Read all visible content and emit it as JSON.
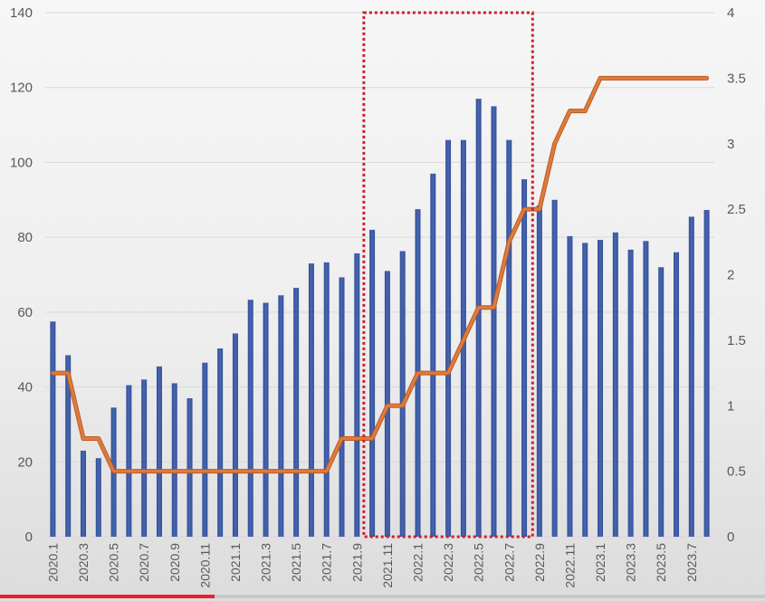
{
  "chart_data": {
    "type": "bar",
    "title": "",
    "xlabel": "",
    "ylabel": "",
    "ylim": [
      0,
      140
    ],
    "y2lim": [
      0,
      4
    ],
    "yticks": [
      "0",
      "20",
      "40",
      "60",
      "80",
      "100",
      "120",
      "140"
    ],
    "y2ticks": [
      "0",
      "0.5",
      "1",
      "1.5",
      "2",
      "2.5",
      "3",
      "3.5",
      "4"
    ],
    "grid": true,
    "x": [
      "2020.1",
      "2020.2",
      "2020.3",
      "2020.4",
      "2020.5",
      "2020.6",
      "2020.7",
      "2020.8",
      "2020.9",
      "2020.10",
      "2020.11",
      "2020.12",
      "2021.1",
      "2021.2",
      "2021.3",
      "2021.4",
      "2021.5",
      "2021.6",
      "2021.7",
      "2021.8",
      "2021.9",
      "2021.10",
      "2021.11",
      "2021.12",
      "2022.1",
      "2022.2",
      "2022.3",
      "2022.4",
      "2022.5",
      "2022.6",
      "2022.7",
      "2022.8",
      "2022.9",
      "2022.10",
      "2022.11",
      "2022.12",
      "2023.1",
      "2023.2",
      "2023.3",
      "2023.4",
      "2023.5",
      "2023.6",
      "2023.7",
      "2023.8"
    ],
    "xtick_labels": [
      "2020.1",
      "2020.3",
      "2020.5",
      "2020.7",
      "2020.9",
      "2020.11",
      "2021.1",
      "2021.3",
      "2021.5",
      "2021.7",
      "2021.9",
      "2021.11",
      "2022.1",
      "2022.3",
      "2022.5",
      "2022.7",
      "2022.9",
      "2022.11",
      "2023.1",
      "2023.3",
      "2023.5",
      "2023.7"
    ],
    "series": [
      {
        "type": "bar",
        "axis": "left",
        "color": "#4a66b0",
        "values": [
          57.5,
          48.5,
          23,
          21,
          34.5,
          40.5,
          42,
          45.5,
          41,
          37,
          46.5,
          50.3,
          54.3,
          63.3,
          62.5,
          64.5,
          66.5,
          73,
          73.3,
          69.3,
          75.7,
          82,
          71,
          76.3,
          87.5,
          97,
          106,
          106,
          117,
          115,
          106,
          95.5,
          88.5,
          90,
          80.3,
          78.5,
          79.3,
          81.3,
          76.7,
          79,
          72,
          76,
          85.5,
          87.3
        ]
      },
      {
        "type": "line",
        "axis": "right",
        "color": "#e07b3c",
        "values": [
          1.25,
          1.25,
          0.75,
          0.75,
          0.5,
          0.5,
          0.5,
          0.5,
          0.5,
          0.5,
          0.5,
          0.5,
          0.5,
          0.5,
          0.5,
          0.5,
          0.5,
          0.5,
          0.5,
          0.75,
          0.75,
          0.75,
          1.0,
          1.0,
          1.25,
          1.25,
          1.25,
          1.5,
          1.75,
          1.75,
          2.25,
          2.5,
          2.5,
          3.0,
          3.25,
          3.25,
          3.5,
          3.5,
          3.5,
          3.5,
          3.5,
          3.5,
          3.5,
          3.5
        ]
      }
    ],
    "annotation": {
      "type": "dashed-rectangle",
      "color": "#cc1f2e",
      "x_start": "2021.10",
      "x_end": "2022.8"
    }
  },
  "progress": {
    "fraction": 0.28,
    "color": "#e8202a"
  }
}
